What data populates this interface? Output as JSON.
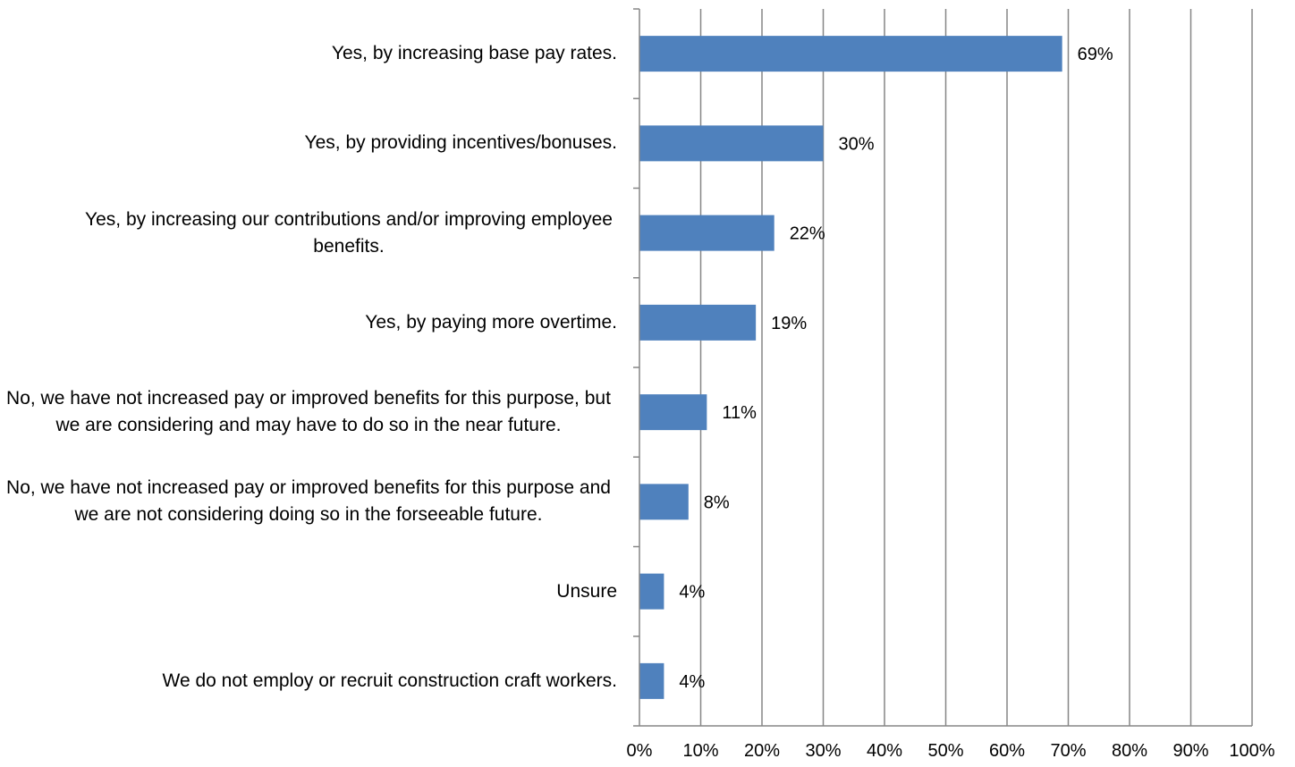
{
  "chart_data": {
    "type": "bar",
    "orientation": "horizontal",
    "title": "",
    "xlabel": "",
    "ylabel": "",
    "categories": [
      "Yes, by increasing base pay rates.",
      "Yes, by providing incentives/bonuses.",
      "Yes, by increasing our contributions and/or improving employee benefits.",
      "Yes, by paying more overtime.",
      "No, we have not increased pay or improved benefits for this purpose, but we are considering and may have to do so in the near future.",
      "No, we have not increased pay or improved benefits for this purpose and we are not considering doing so in the forseeable future.",
      "Unsure",
      "We do not employ or recruit construction craft workers."
    ],
    "values": [
      69,
      30,
      22,
      19,
      11,
      8,
      4,
      4
    ],
    "value_labels": [
      "69%",
      "30%",
      "22%",
      "19%",
      "11%",
      "8%",
      "4%",
      "4%"
    ],
    "xlim": [
      0,
      100
    ],
    "x_ticks": [
      0,
      10,
      20,
      30,
      40,
      50,
      60,
      70,
      80,
      90,
      100
    ],
    "x_tick_labels": [
      "0%",
      "10%",
      "20%",
      "30%",
      "40%",
      "50%",
      "60%",
      "70%",
      "80%",
      "90%",
      "100%"
    ],
    "grid": "vertical",
    "legend": "none",
    "bar_color": "#4F81BD",
    "gridline_color": "#868686"
  }
}
